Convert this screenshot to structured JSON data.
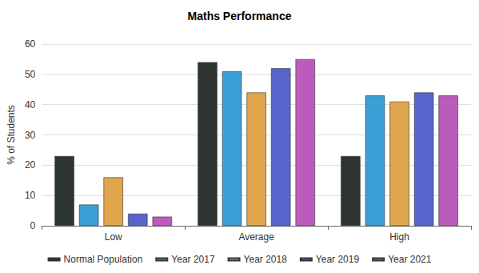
{
  "chart_data": {
    "type": "bar",
    "title": "Maths Performance",
    "y_label": "% of Students",
    "categories": [
      "Low",
      "Average",
      "High"
    ],
    "series": [
      {
        "name": "Normal Population",
        "color": "#2d3432",
        "values": [
          23,
          54,
          23
        ]
      },
      {
        "name": "Year 2017",
        "color": "#3a9fd4",
        "values": [
          7,
          51,
          43
        ]
      },
      {
        "name": "Year 2018",
        "color": "#e0a64c",
        "values": [
          16,
          44,
          41
        ]
      },
      {
        "name": "Year 2019",
        "color": "#5766cc",
        "values": [
          4,
          52,
          44
        ]
      },
      {
        "name": "Year 2021",
        "color": "#bb5cbc",
        "values": [
          3,
          55,
          43
        ]
      }
    ],
    "ylim": [
      0,
      60
    ],
    "yticks": [
      0,
      10,
      20,
      30,
      40,
      50,
      60
    ],
    "grid": true,
    "legend": "bottom"
  }
}
